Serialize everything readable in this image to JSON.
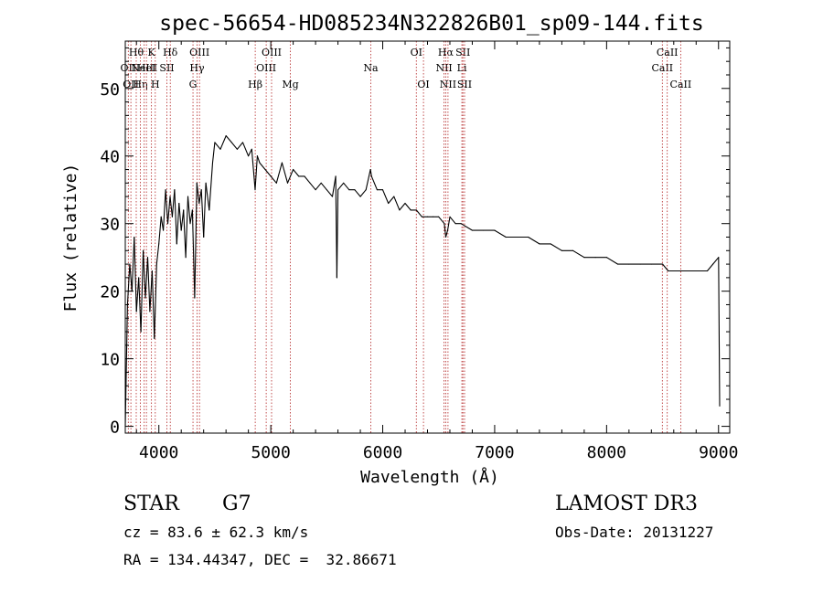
{
  "chart_data": {
    "type": "line",
    "title": "spec-56654-HD085234N322826B01_sp09-144.fits",
    "xlabel": "Wavelength (Å)",
    "ylabel": "Flux (relative)",
    "xlim": [
      3700,
      9100
    ],
    "ylim": [
      -1,
      57
    ],
    "xticks": [
      4000,
      5000,
      6000,
      7000,
      8000,
      9000
    ],
    "xtick_labels": [
      "4000",
      "5000",
      "6000",
      "7000",
      "8000",
      "9000"
    ],
    "yticks": [
      0,
      10,
      20,
      30,
      40,
      50
    ],
    "ytick_labels": [
      "0",
      "10",
      "20",
      "30",
      "40",
      "50"
    ],
    "series": [
      {
        "name": "flux",
        "x": [
          3700,
          3720,
          3740,
          3760,
          3780,
          3800,
          3820,
          3840,
          3860,
          3880,
          3900,
          3920,
          3940,
          3960,
          3980,
          4000,
          4020,
          4040,
          4060,
          4080,
          4100,
          4120,
          4140,
          4160,
          4180,
          4200,
          4220,
          4240,
          4260,
          4280,
          4300,
          4320,
          4340,
          4360,
          4380,
          4400,
          4420,
          4450,
          4480,
          4500,
          4550,
          4600,
          4650,
          4700,
          4750,
          4800,
          4830,
          4860,
          4880,
          4900,
          4950,
          5000,
          5050,
          5100,
          5150,
          5200,
          5250,
          5300,
          5350,
          5400,
          5450,
          5500,
          5550,
          5580,
          5590,
          5600,
          5650,
          5700,
          5750,
          5800,
          5850,
          5890,
          5900,
          5950,
          6000,
          6050,
          6100,
          6150,
          6200,
          6250,
          6300,
          6350,
          6400,
          6450,
          6500,
          6550,
          6563,
          6580,
          6600,
          6650,
          6700,
          6800,
          6900,
          7000,
          7100,
          7200,
          7300,
          7400,
          7500,
          7600,
          7700,
          7800,
          7900,
          8000,
          8100,
          8200,
          8300,
          8400,
          8500,
          8550,
          8600,
          8650,
          8700,
          8800,
          8900,
          8950,
          9000,
          9010
        ],
        "y": [
          0,
          18,
          24,
          20,
          28,
          17,
          22,
          14,
          26,
          19,
          25,
          17,
          23,
          13,
          24,
          27,
          31,
          29,
          35,
          30,
          34,
          31,
          35,
          27,
          33,
          29,
          32,
          25,
          34,
          30,
          32,
          19,
          36,
          33,
          35,
          28,
          36,
          32,
          39,
          42,
          41,
          43,
          42,
          41,
          42,
          40,
          41,
          35,
          40,
          39,
          38,
          37,
          36,
          39,
          36,
          38,
          37,
          37,
          36,
          35,
          36,
          35,
          34,
          37,
          22,
          35,
          36,
          35,
          35,
          34,
          35,
          38,
          37,
          35,
          35,
          33,
          34,
          32,
          33,
          32,
          32,
          31,
          31,
          31,
          31,
          30,
          28,
          29,
          31,
          30,
          30,
          29,
          29,
          29,
          28,
          28,
          28,
          27,
          27,
          26,
          26,
          25,
          25,
          25,
          24,
          24,
          24,
          24,
          24,
          23,
          23,
          23,
          23,
          23,
          23,
          24,
          25,
          3
        ]
      }
    ],
    "line_markers": [
      {
        "wavelength": 3727,
        "label": "OII",
        "row": 2
      },
      {
        "wavelength": 3750,
        "label": "OII",
        "row": 3
      },
      {
        "wavelength": 3798,
        "label": "Hθ",
        "row": 1
      },
      {
        "wavelength": 3835,
        "label": "Hη",
        "row": 3
      },
      {
        "wavelength": 3869,
        "label": "NeIII",
        "row": 2
      },
      {
        "wavelength": 3889,
        "label": "HeI",
        "row": 2
      },
      {
        "wavelength": 3934,
        "label": "K",
        "row": 1
      },
      {
        "wavelength": 3968,
        "label": "H",
        "row": 3
      },
      {
        "wavelength": 4072,
        "label": "SII",
        "row": 2
      },
      {
        "wavelength": 4102,
        "label": "Hδ",
        "row": 1
      },
      {
        "wavelength": 4305,
        "label": "G",
        "row": 3
      },
      {
        "wavelength": 4341,
        "label": "Hγ",
        "row": 2
      },
      {
        "wavelength": 4363,
        "label": "OIII",
        "row": 1
      },
      {
        "wavelength": 4861,
        "label": "Hβ",
        "row": 3
      },
      {
        "wavelength": 4959,
        "label": "OIII",
        "row": 2
      },
      {
        "wavelength": 5007,
        "label": "OIII",
        "row": 1
      },
      {
        "wavelength": 5175,
        "label": "Mg",
        "row": 3
      },
      {
        "wavelength": 5893,
        "label": "Na",
        "row": 2
      },
      {
        "wavelength": 6300,
        "label": "OI",
        "row": 1
      },
      {
        "wavelength": 6364,
        "label": "OI",
        "row": 3
      },
      {
        "wavelength": 6548,
        "label": "NII",
        "row": 2
      },
      {
        "wavelength": 6563,
        "label": "Hα",
        "row": 1
      },
      {
        "wavelength": 6583,
        "label": "NII",
        "row": 3
      },
      {
        "wavelength": 6707,
        "label": "Li",
        "row": 2
      },
      {
        "wavelength": 6716,
        "label": "SII",
        "row": 1
      },
      {
        "wavelength": 6731,
        "label": "SII",
        "row": 3
      },
      {
        "wavelength": 8498,
        "label": "CaII",
        "row": 2
      },
      {
        "wavelength": 8542,
        "label": "CaII",
        "row": 1
      },
      {
        "wavelength": 8662,
        "label": "CaII",
        "row": 3
      }
    ]
  },
  "info": {
    "class": "STAR",
    "subclass": "G7",
    "survey": "LAMOST DR3",
    "cz": "cz = 83.6 ± 62.3 km/s",
    "obs_date": "Obs-Date: 20131227",
    "coords": "RA = 134.44347, DEC =  32.86671"
  }
}
